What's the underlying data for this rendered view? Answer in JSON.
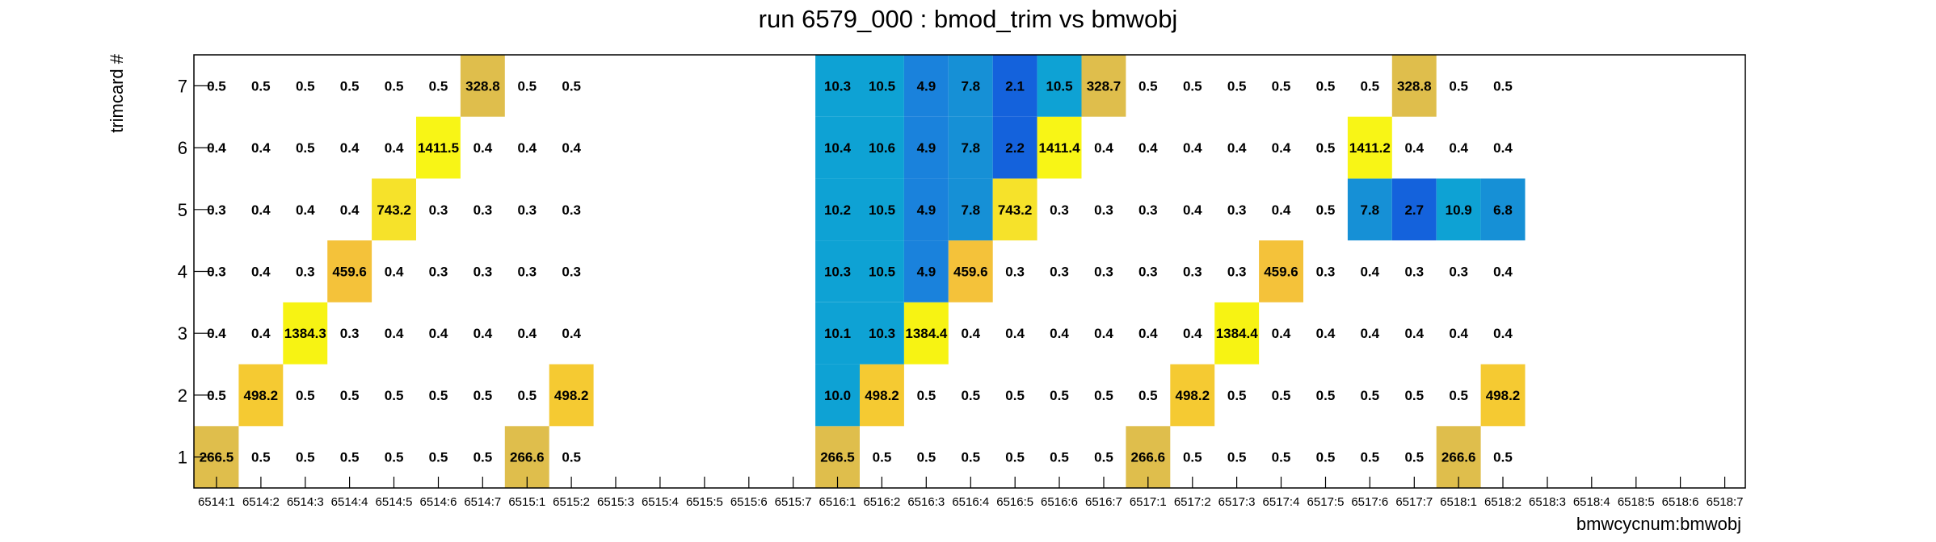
{
  "chart_data": {
    "type": "heatmap",
    "title": "run 6579_000 : bmod_trim vs bmwobj",
    "xlabel": "bmwcycnum:bmwobj",
    "ylabel": "trimcard #",
    "x_categories": [
      "6514:1",
      "6514:2",
      "6514:3",
      "6514:4",
      "6514:5",
      "6514:6",
      "6514:7",
      "6515:1",
      "6515:2",
      "6515:3",
      "6515:4",
      "6515:5",
      "6515:6",
      "6515:7",
      "6516:1",
      "6516:2",
      "6516:3",
      "6516:4",
      "6516:5",
      "6516:6",
      "6516:7",
      "6517:1",
      "6517:2",
      "6517:3",
      "6517:4",
      "6517:5",
      "6517:6",
      "6517:7",
      "6518:1",
      "6518:2",
      "6518:3",
      "6518:4",
      "6518:5",
      "6518:6",
      "6518:7"
    ],
    "y_categories": [
      "1",
      "2",
      "3",
      "4",
      "5",
      "6",
      "7"
    ],
    "grid": false,
    "cells": [
      {
        "xi": 0,
        "yi": 0,
        "value": "266.5",
        "color": "#dfbe4c"
      },
      {
        "xi": 1,
        "yi": 0,
        "value": "0.5"
      },
      {
        "xi": 2,
        "yi": 0,
        "value": "0.5"
      },
      {
        "xi": 3,
        "yi": 0,
        "value": "0.5"
      },
      {
        "xi": 4,
        "yi": 0,
        "value": "0.5"
      },
      {
        "xi": 5,
        "yi": 0,
        "value": "0.5"
      },
      {
        "xi": 6,
        "yi": 0,
        "value": "0.5"
      },
      {
        "xi": 7,
        "yi": 0,
        "value": "266.6",
        "color": "#dfbe4c"
      },
      {
        "xi": 8,
        "yi": 0,
        "value": "0.5"
      },
      {
        "xi": 14,
        "yi": 0,
        "value": "266.5",
        "color": "#dfbe4c"
      },
      {
        "xi": 15,
        "yi": 0,
        "value": "0.5"
      },
      {
        "xi": 16,
        "yi": 0,
        "value": "0.5"
      },
      {
        "xi": 17,
        "yi": 0,
        "value": "0.5"
      },
      {
        "xi": 18,
        "yi": 0,
        "value": "0.5"
      },
      {
        "xi": 19,
        "yi": 0,
        "value": "0.5"
      },
      {
        "xi": 20,
        "yi": 0,
        "value": "0.5"
      },
      {
        "xi": 21,
        "yi": 0,
        "value": "266.6",
        "color": "#dfbe4c"
      },
      {
        "xi": 22,
        "yi": 0,
        "value": "0.5"
      },
      {
        "xi": 23,
        "yi": 0,
        "value": "0.5"
      },
      {
        "xi": 24,
        "yi": 0,
        "value": "0.5"
      },
      {
        "xi": 25,
        "yi": 0,
        "value": "0.5"
      },
      {
        "xi": 26,
        "yi": 0,
        "value": "0.5"
      },
      {
        "xi": 27,
        "yi": 0,
        "value": "0.5"
      },
      {
        "xi": 28,
        "yi": 0,
        "value": "266.6",
        "color": "#dfbe4c"
      },
      {
        "xi": 29,
        "yi": 0,
        "value": "0.5"
      },
      {
        "xi": 0,
        "yi": 1,
        "value": "0.5"
      },
      {
        "xi": 1,
        "yi": 1,
        "value": "498.2",
        "color": "#f5ca32"
      },
      {
        "xi": 2,
        "yi": 1,
        "value": "0.5"
      },
      {
        "xi": 3,
        "yi": 1,
        "value": "0.5"
      },
      {
        "xi": 4,
        "yi": 1,
        "value": "0.5"
      },
      {
        "xi": 5,
        "yi": 1,
        "value": "0.5"
      },
      {
        "xi": 6,
        "yi": 1,
        "value": "0.5"
      },
      {
        "xi": 7,
        "yi": 1,
        "value": "0.5"
      },
      {
        "xi": 8,
        "yi": 1,
        "value": "498.2",
        "color": "#f5ca32"
      },
      {
        "xi": 14,
        "yi": 1,
        "value": "10.0",
        "color": "#0ea2d4"
      },
      {
        "xi": 15,
        "yi": 1,
        "value": "498.2",
        "color": "#f5ca32"
      },
      {
        "xi": 16,
        "yi": 1,
        "value": "0.5"
      },
      {
        "xi": 17,
        "yi": 1,
        "value": "0.5"
      },
      {
        "xi": 18,
        "yi": 1,
        "value": "0.5"
      },
      {
        "xi": 19,
        "yi": 1,
        "value": "0.5"
      },
      {
        "xi": 20,
        "yi": 1,
        "value": "0.5"
      },
      {
        "xi": 21,
        "yi": 1,
        "value": "0.5"
      },
      {
        "xi": 22,
        "yi": 1,
        "value": "498.2",
        "color": "#f5ca32"
      },
      {
        "xi": 23,
        "yi": 1,
        "value": "0.5"
      },
      {
        "xi": 24,
        "yi": 1,
        "value": "0.5"
      },
      {
        "xi": 25,
        "yi": 1,
        "value": "0.5"
      },
      {
        "xi": 26,
        "yi": 1,
        "value": "0.5"
      },
      {
        "xi": 27,
        "yi": 1,
        "value": "0.5"
      },
      {
        "xi": 28,
        "yi": 1,
        "value": "0.5"
      },
      {
        "xi": 29,
        "yi": 1,
        "value": "498.2",
        "color": "#f5ca32"
      },
      {
        "xi": 0,
        "yi": 2,
        "value": "0.4"
      },
      {
        "xi": 1,
        "yi": 2,
        "value": "0.4"
      },
      {
        "xi": 2,
        "yi": 2,
        "value": "1384.3",
        "color": "#f7f313"
      },
      {
        "xi": 3,
        "yi": 2,
        "value": "0.3"
      },
      {
        "xi": 4,
        "yi": 2,
        "value": "0.4"
      },
      {
        "xi": 5,
        "yi": 2,
        "value": "0.4"
      },
      {
        "xi": 6,
        "yi": 2,
        "value": "0.4"
      },
      {
        "xi": 7,
        "yi": 2,
        "value": "0.4"
      },
      {
        "xi": 8,
        "yi": 2,
        "value": "0.4"
      },
      {
        "xi": 14,
        "yi": 2,
        "value": "10.1",
        "color": "#0ea2d4"
      },
      {
        "xi": 15,
        "yi": 2,
        "value": "10.3",
        "color": "#0ea2d4"
      },
      {
        "xi": 16,
        "yi": 2,
        "value": "1384.4",
        "color": "#f7f313"
      },
      {
        "xi": 17,
        "yi": 2,
        "value": "0.4"
      },
      {
        "xi": 18,
        "yi": 2,
        "value": "0.4"
      },
      {
        "xi": 19,
        "yi": 2,
        "value": "0.4"
      },
      {
        "xi": 20,
        "yi": 2,
        "value": "0.4"
      },
      {
        "xi": 21,
        "yi": 2,
        "value": "0.4"
      },
      {
        "xi": 22,
        "yi": 2,
        "value": "0.4"
      },
      {
        "xi": 23,
        "yi": 2,
        "value": "1384.4",
        "color": "#f7f313"
      },
      {
        "xi": 24,
        "yi": 2,
        "value": "0.4"
      },
      {
        "xi": 25,
        "yi": 2,
        "value": "0.4"
      },
      {
        "xi": 26,
        "yi": 2,
        "value": "0.4"
      },
      {
        "xi": 27,
        "yi": 2,
        "value": "0.4"
      },
      {
        "xi": 28,
        "yi": 2,
        "value": "0.4"
      },
      {
        "xi": 29,
        "yi": 2,
        "value": "0.4"
      },
      {
        "xi": 0,
        "yi": 3,
        "value": "0.3"
      },
      {
        "xi": 1,
        "yi": 3,
        "value": "0.4"
      },
      {
        "xi": 2,
        "yi": 3,
        "value": "0.3"
      },
      {
        "xi": 3,
        "yi": 3,
        "value": "459.6",
        "color": "#f4c23a"
      },
      {
        "xi": 4,
        "yi": 3,
        "value": "0.4"
      },
      {
        "xi": 5,
        "yi": 3,
        "value": "0.3"
      },
      {
        "xi": 6,
        "yi": 3,
        "value": "0.3"
      },
      {
        "xi": 7,
        "yi": 3,
        "value": "0.3"
      },
      {
        "xi": 8,
        "yi": 3,
        "value": "0.3"
      },
      {
        "xi": 14,
        "yi": 3,
        "value": "10.3",
        "color": "#0ea2d4"
      },
      {
        "xi": 15,
        "yi": 3,
        "value": "10.5",
        "color": "#0ea2d4"
      },
      {
        "xi": 16,
        "yi": 3,
        "value": "4.9",
        "color": "#1a82dc"
      },
      {
        "xi": 17,
        "yi": 3,
        "value": "459.6",
        "color": "#f4c23a"
      },
      {
        "xi": 18,
        "yi": 3,
        "value": "0.3"
      },
      {
        "xi": 19,
        "yi": 3,
        "value": "0.3"
      },
      {
        "xi": 20,
        "yi": 3,
        "value": "0.3"
      },
      {
        "xi": 21,
        "yi": 3,
        "value": "0.3"
      },
      {
        "xi": 22,
        "yi": 3,
        "value": "0.3"
      },
      {
        "xi": 23,
        "yi": 3,
        "value": "0.3"
      },
      {
        "xi": 24,
        "yi": 3,
        "value": "459.6",
        "color": "#f4c23a"
      },
      {
        "xi": 25,
        "yi": 3,
        "value": "0.3"
      },
      {
        "xi": 26,
        "yi": 3,
        "value": "0.4"
      },
      {
        "xi": 27,
        "yi": 3,
        "value": "0.3"
      },
      {
        "xi": 28,
        "yi": 3,
        "value": "0.3"
      },
      {
        "xi": 29,
        "yi": 3,
        "value": "0.4"
      },
      {
        "xi": 0,
        "yi": 4,
        "value": "0.3"
      },
      {
        "xi": 1,
        "yi": 4,
        "value": "0.4"
      },
      {
        "xi": 2,
        "yi": 4,
        "value": "0.4"
      },
      {
        "xi": 3,
        "yi": 4,
        "value": "0.4"
      },
      {
        "xi": 4,
        "yi": 4,
        "value": "743.2",
        "color": "#f6e22a"
      },
      {
        "xi": 5,
        "yi": 4,
        "value": "0.3"
      },
      {
        "xi": 6,
        "yi": 4,
        "value": "0.3"
      },
      {
        "xi": 7,
        "yi": 4,
        "value": "0.3"
      },
      {
        "xi": 8,
        "yi": 4,
        "value": "0.3"
      },
      {
        "xi": 14,
        "yi": 4,
        "value": "10.2",
        "color": "#0ea2d4"
      },
      {
        "xi": 15,
        "yi": 4,
        "value": "10.5",
        "color": "#0ea2d4"
      },
      {
        "xi": 16,
        "yi": 4,
        "value": "4.9",
        "color": "#1a82dc"
      },
      {
        "xi": 17,
        "yi": 4,
        "value": "7.8",
        "color": "#1690d6"
      },
      {
        "xi": 18,
        "yi": 4,
        "value": "743.2",
        "color": "#f6e22a"
      },
      {
        "xi": 19,
        "yi": 4,
        "value": "0.3"
      },
      {
        "xi": 20,
        "yi": 4,
        "value": "0.3"
      },
      {
        "xi": 21,
        "yi": 4,
        "value": "0.3"
      },
      {
        "xi": 22,
        "yi": 4,
        "value": "0.4"
      },
      {
        "xi": 23,
        "yi": 4,
        "value": "0.3"
      },
      {
        "xi": 24,
        "yi": 4,
        "value": "0.4"
      },
      {
        "xi": 25,
        "yi": 4,
        "value": "0.5"
      },
      {
        "xi": 26,
        "yi": 4,
        "value": "7.8",
        "color": "#1690d6"
      },
      {
        "xi": 27,
        "yi": 4,
        "value": "2.7",
        "color": "#1462dc"
      },
      {
        "xi": 28,
        "yi": 4,
        "value": "10.9",
        "color": "#0ea2d4"
      },
      {
        "xi": 29,
        "yi": 4,
        "value": "6.8",
        "color": "#1690d6"
      },
      {
        "xi": 0,
        "yi": 5,
        "value": "0.4"
      },
      {
        "xi": 1,
        "yi": 5,
        "value": "0.4"
      },
      {
        "xi": 2,
        "yi": 5,
        "value": "0.5"
      },
      {
        "xi": 3,
        "yi": 5,
        "value": "0.4"
      },
      {
        "xi": 4,
        "yi": 5,
        "value": "0.4"
      },
      {
        "xi": 5,
        "yi": 5,
        "value": "1411.5",
        "color": "#f8f516"
      },
      {
        "xi": 6,
        "yi": 5,
        "value": "0.4"
      },
      {
        "xi": 7,
        "yi": 5,
        "value": "0.4"
      },
      {
        "xi": 8,
        "yi": 5,
        "value": "0.4"
      },
      {
        "xi": 14,
        "yi": 5,
        "value": "10.4",
        "color": "#0ea2d4"
      },
      {
        "xi": 15,
        "yi": 5,
        "value": "10.6",
        "color": "#0ea2d4"
      },
      {
        "xi": 16,
        "yi": 5,
        "value": "4.9",
        "color": "#1a82dc"
      },
      {
        "xi": 17,
        "yi": 5,
        "value": "7.8",
        "color": "#1690d6"
      },
      {
        "xi": 18,
        "yi": 5,
        "value": "2.2",
        "color": "#1462dc"
      },
      {
        "xi": 19,
        "yi": 5,
        "value": "1411.4",
        "color": "#f8f516"
      },
      {
        "xi": 20,
        "yi": 5,
        "value": "0.4"
      },
      {
        "xi": 21,
        "yi": 5,
        "value": "0.4"
      },
      {
        "xi": 22,
        "yi": 5,
        "value": "0.4"
      },
      {
        "xi": 23,
        "yi": 5,
        "value": "0.4"
      },
      {
        "xi": 24,
        "yi": 5,
        "value": "0.4"
      },
      {
        "xi": 25,
        "yi": 5,
        "value": "0.5"
      },
      {
        "xi": 26,
        "yi": 5,
        "value": "1411.2",
        "color": "#f8f516"
      },
      {
        "xi": 27,
        "yi": 5,
        "value": "0.4"
      },
      {
        "xi": 28,
        "yi": 5,
        "value": "0.4"
      },
      {
        "xi": 29,
        "yi": 5,
        "value": "0.4"
      },
      {
        "xi": 0,
        "yi": 6,
        "value": "0.5"
      },
      {
        "xi": 1,
        "yi": 6,
        "value": "0.5"
      },
      {
        "xi": 2,
        "yi": 6,
        "value": "0.5"
      },
      {
        "xi": 3,
        "yi": 6,
        "value": "0.5"
      },
      {
        "xi": 4,
        "yi": 6,
        "value": "0.5"
      },
      {
        "xi": 5,
        "yi": 6,
        "value": "0.5"
      },
      {
        "xi": 6,
        "yi": 6,
        "value": "328.8",
        "color": "#dfbe4c"
      },
      {
        "xi": 7,
        "yi": 6,
        "value": "0.5"
      },
      {
        "xi": 8,
        "yi": 6,
        "value": "0.5"
      },
      {
        "xi": 14,
        "yi": 6,
        "value": "10.3",
        "color": "#0ea2d4"
      },
      {
        "xi": 15,
        "yi": 6,
        "value": "10.5",
        "color": "#0ea2d4"
      },
      {
        "xi": 16,
        "yi": 6,
        "value": "4.9",
        "color": "#1a82dc"
      },
      {
        "xi": 17,
        "yi": 6,
        "value": "7.8",
        "color": "#1690d6"
      },
      {
        "xi": 18,
        "yi": 6,
        "value": "2.1",
        "color": "#1462dc"
      },
      {
        "xi": 19,
        "yi": 6,
        "value": "10.5",
        "color": "#0ea2d4"
      },
      {
        "xi": 20,
        "yi": 6,
        "value": "328.7",
        "color": "#dfbe4c"
      },
      {
        "xi": 21,
        "yi": 6,
        "value": "0.5"
      },
      {
        "xi": 22,
        "yi": 6,
        "value": "0.5"
      },
      {
        "xi": 23,
        "yi": 6,
        "value": "0.5"
      },
      {
        "xi": 24,
        "yi": 6,
        "value": "0.5"
      },
      {
        "xi": 25,
        "yi": 6,
        "value": "0.5"
      },
      {
        "xi": 26,
        "yi": 6,
        "value": "0.5"
      },
      {
        "xi": 27,
        "yi": 6,
        "value": "328.8",
        "color": "#dfbe4c"
      },
      {
        "xi": 28,
        "yi": 6,
        "value": "0.5"
      },
      {
        "xi": 29,
        "yi": 6,
        "value": "0.5"
      }
    ]
  }
}
